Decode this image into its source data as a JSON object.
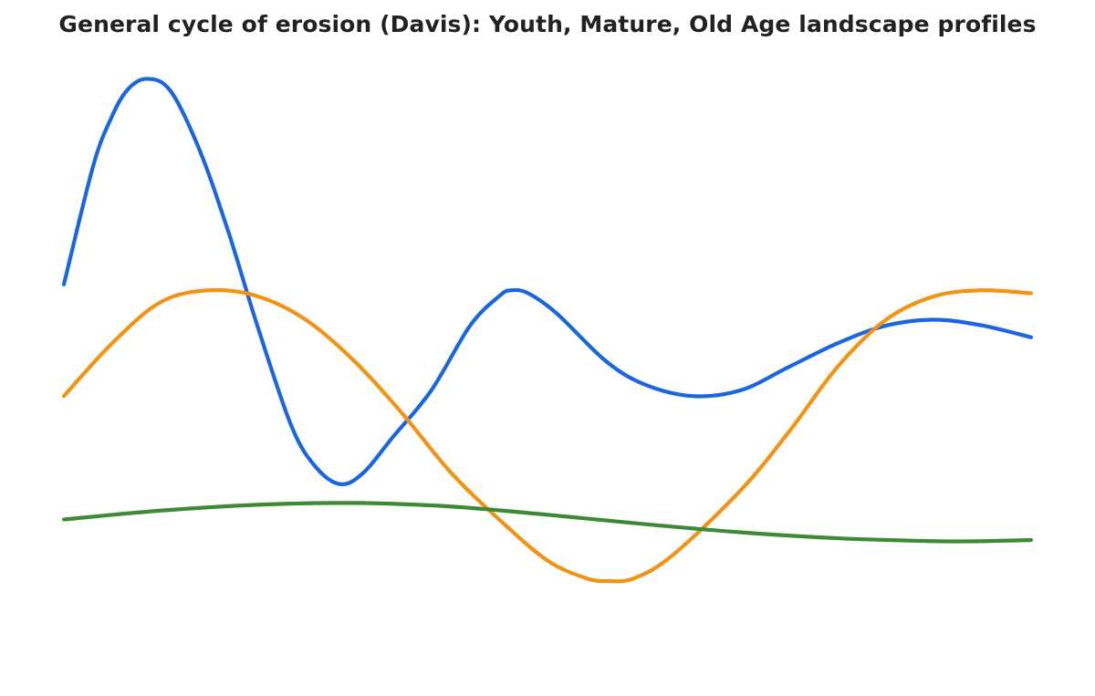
{
  "chart_data": {
    "type": "line",
    "title": "General cycle of erosion (Davis): Youth, Mature, Old Age landscape profiles",
    "xlabel": "",
    "ylabel": "",
    "xlim": [
      0,
      1
    ],
    "ylim": [
      0,
      1
    ],
    "grid": false,
    "legend": "none",
    "axes_visible": false,
    "series": [
      {
        "color": "#1a66e0",
        "points": [
          [
            0.0,
            0.64
          ],
          [
            0.03,
            0.84
          ],
          [
            0.048,
            0.92
          ],
          [
            0.065,
            0.97
          ],
          [
            0.085,
            0.99
          ],
          [
            0.11,
            0.97
          ],
          [
            0.14,
            0.87
          ],
          [
            0.17,
            0.73
          ],
          [
            0.2,
            0.57
          ],
          [
            0.235,
            0.4
          ],
          [
            0.26,
            0.33
          ],
          [
            0.286,
            0.3
          ],
          [
            0.31,
            0.32
          ],
          [
            0.34,
            0.38
          ],
          [
            0.38,
            0.46
          ],
          [
            0.42,
            0.57
          ],
          [
            0.45,
            0.62
          ],
          [
            0.462,
            0.63
          ],
          [
            0.48,
            0.625
          ],
          [
            0.51,
            0.59
          ],
          [
            0.56,
            0.51
          ],
          [
            0.6,
            0.47
          ],
          [
            0.65,
            0.45
          ],
          [
            0.7,
            0.46
          ],
          [
            0.75,
            0.5
          ],
          [
            0.8,
            0.54
          ],
          [
            0.85,
            0.57
          ],
          [
            0.9,
            0.58
          ],
          [
            0.95,
            0.57
          ],
          [
            1.0,
            0.55
          ]
        ]
      },
      {
        "color": "#f39313",
        "points": [
          [
            0.0,
            0.45
          ],
          [
            0.05,
            0.54
          ],
          [
            0.1,
            0.61
          ],
          [
            0.15,
            0.63
          ],
          [
            0.2,
            0.62
          ],
          [
            0.25,
            0.58
          ],
          [
            0.3,
            0.51
          ],
          [
            0.35,
            0.42
          ],
          [
            0.4,
            0.32
          ],
          [
            0.45,
            0.24
          ],
          [
            0.5,
            0.17
          ],
          [
            0.54,
            0.14
          ],
          [
            0.563,
            0.135
          ],
          [
            0.59,
            0.14
          ],
          [
            0.63,
            0.18
          ],
          [
            0.7,
            0.29
          ],
          [
            0.75,
            0.39
          ],
          [
            0.8,
            0.5
          ],
          [
            0.85,
            0.58
          ],
          [
            0.9,
            0.62
          ],
          [
            0.95,
            0.63
          ],
          [
            1.0,
            0.625
          ]
        ]
      },
      {
        "color": "#3c8a35",
        "points": [
          [
            0.0,
            0.24
          ],
          [
            0.1,
            0.255
          ],
          [
            0.2,
            0.265
          ],
          [
            0.3,
            0.268
          ],
          [
            0.4,
            0.262
          ],
          [
            0.5,
            0.248
          ],
          [
            0.6,
            0.232
          ],
          [
            0.7,
            0.218
          ],
          [
            0.8,
            0.208
          ],
          [
            0.9,
            0.203
          ],
          [
            0.95,
            0.203
          ],
          [
            1.0,
            0.205
          ]
        ]
      }
    ]
  }
}
